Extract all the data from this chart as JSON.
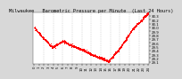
{
  "title": "Milwaukee   Barometric Pressure per Minute  (Last 24 Hours)",
  "bg_color": "#d8d8d8",
  "plot_bg_color": "#ffffff",
  "grid_color": "#aaaaaa",
  "line_color": "#ff0000",
  "ylim": [
    29.05,
    30.38
  ],
  "ytick_values": [
    29.1,
    29.2,
    29.3,
    29.4,
    29.5,
    29.6,
    29.7,
    29.8,
    29.9,
    30.0,
    30.1,
    30.2,
    30.3
  ],
  "num_points": 1440,
  "title_fontsize": 3.8,
  "tick_fontsize": 2.8,
  "marker_size": 0.5,
  "num_vgrid": 11
}
